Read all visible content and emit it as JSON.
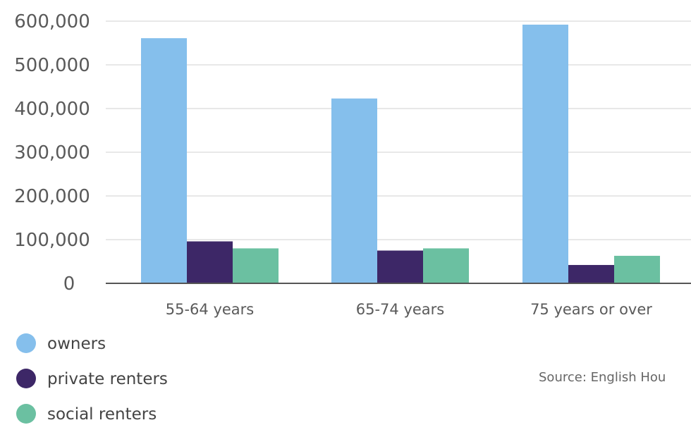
{
  "chart_data": {
    "type": "bar",
    "categories": [
      "55-64 years",
      "65-74 years",
      "75 years or over"
    ],
    "series": [
      {
        "name": "owners",
        "color": "#85bfec",
        "values": [
          561000,
          423000,
          592000
        ]
      },
      {
        "name": "private renters",
        "color": "#3d2767",
        "values": [
          96000,
          75000,
          42000
        ]
      },
      {
        "name": "social renters",
        "color": "#6bc0a1",
        "values": [
          80000,
          80000,
          63000
        ]
      }
    ],
    "yticks": [
      "0",
      "100,000",
      "200,000",
      "300,000",
      "400,000",
      "500,000",
      "600,000"
    ],
    "ylim": [
      0,
      600000
    ],
    "grid": true,
    "legend_position": "bottom-left",
    "title": "",
    "xlabel": "",
    "ylabel": "",
    "source": "Source: English Hou"
  }
}
